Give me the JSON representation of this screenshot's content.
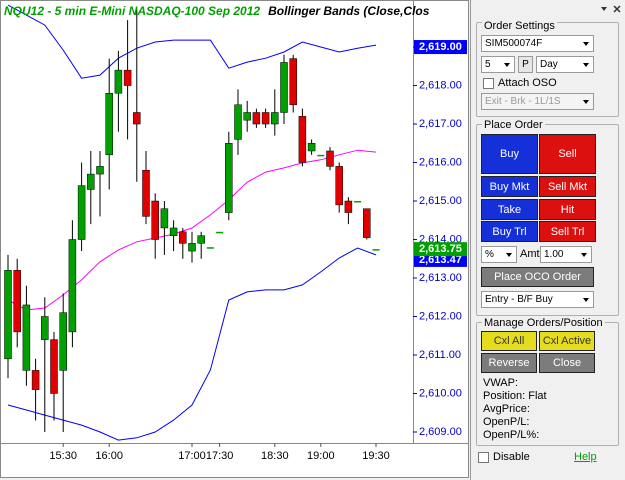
{
  "chart_data": {
    "type": "candlestick",
    "title": "NQU12 - 5 min  E-Mini NASDAQ-100 Sep 2012",
    "indicator": "Bollinger Bands (Close,Clos",
    "categories": [
      null,
      null,
      null,
      null,
      null,
      null,
      "15:30",
      null,
      null,
      null,
      null,
      "16:00",
      null,
      null,
      null,
      null,
      null,
      null,
      null,
      null,
      "17:00",
      null,
      null,
      "17:30",
      null,
      null,
      null,
      null,
      null,
      "18:30",
      null,
      null,
      null,
      null,
      "19:00",
      null,
      null,
      null,
      null,
      null,
      "19:30"
    ],
    "open": [
      2610.9,
      2613.2,
      2610.6,
      2610.6,
      2611.4,
      2611.4,
      2610.6,
      2611.6,
      2614.0,
      2615.3,
      2615.7,
      2616.2,
      2617.8,
      2618.4,
      2617.3,
      2615.8,
      2615.0,
      2614.3,
      2614.1,
      2614.2,
      2613.7,
      2613.9,
      2613.8,
      2614.2,
      2614.7,
      2616.6,
      2617.1,
      2617.3,
      2617.3,
      2617.0,
      2617.3,
      2618.7,
      2617.2,
      2616.3,
      2616.2,
      2616.3,
      2615.9,
      2615.0,
      2615.0,
      2614.8,
      2613.75
    ],
    "high": [
      2613.6,
      2613.5,
      2612.8,
      2610.9,
      2612.5,
      2611.6,
      2612.6,
      2614.5,
      2616.0,
      2616.3,
      2616.3,
      2618.7,
      2618.9,
      2619.7,
      2620.0,
      2616.3,
      2615.2,
      2615.0,
      2614.5,
      2614.3,
      2614.2,
      2614.2,
      2613.8,
      2614.2,
      2616.8,
      2617.9,
      2617.6,
      2617.4,
      2617.4,
      2617.9,
      2618.8,
      2618.8,
      2617.4,
      2616.6,
      2616.2,
      2616.4,
      2616.0,
      2615.1,
      2615.0,
      2614.8,
      2613.75
    ],
    "low": [
      2610.4,
      2611.2,
      2610.2,
      2609.3,
      2609.0,
      2609.3,
      2609.0,
      2611.2,
      2613.7,
      2614.4,
      2614.6,
      2615.3,
      2616.8,
      2616.6,
      2615.5,
      2614.4,
      2613.5,
      2613.6,
      2613.7,
      2613.5,
      2613.4,
      2613.5,
      2613.8,
      2614.2,
      2614.5,
      2616.2,
      2616.8,
      2616.9,
      2616.9,
      2616.7,
      2617.0,
      2617.3,
      2615.9,
      2616.2,
      2616.2,
      2615.8,
      2614.7,
      2614.4,
      2615.0,
      2614.0,
      2613.75
    ],
    "close": [
      2613.2,
      2611.6,
      2612.3,
      2610.1,
      2612.0,
      2610.0,
      2612.1,
      2614.0,
      2615.4,
      2615.7,
      2615.9,
      2617.8,
      2618.4,
      2618.0,
      2617.0,
      2614.6,
      2614.0,
      2614.8,
      2614.3,
      2613.9,
      2613.9,
      2614.1,
      2613.8,
      2614.2,
      2616.5,
      2617.5,
      2617.3,
      2617.0,
      2617.0,
      2617.3,
      2618.6,
      2617.5,
      2616.0,
      2616.5,
      2616.2,
      2615.9,
      2614.9,
      2614.7,
      2615.0,
      2614.05,
      2613.75
    ],
    "up_color": "#00a000",
    "down_color": "#e00000",
    "bands": {
      "x": [
        0,
        2,
        4,
        6,
        8,
        10,
        12,
        14,
        16,
        18,
        20,
        22,
        24,
        26,
        28,
        30,
        32,
        34,
        36,
        38,
        40
      ],
      "upper": [
        2620.09,
        2619.83,
        2619.57,
        2618.92,
        2618.19,
        2618.27,
        2618.71,
        2618.97,
        2619.13,
        2619.18,
        2619.18,
        2619.18,
        2618.45,
        2618.61,
        2618.71,
        2618.87,
        2619.13,
        2619.0,
        2618.87,
        2618.97,
        2619.05
      ],
      "middle": [
        2612.43,
        2612.17,
        2612.22,
        2612.56,
        2612.95,
        2613.42,
        2613.73,
        2613.94,
        2614.04,
        2614.14,
        2614.3,
        2614.64,
        2615.03,
        2615.49,
        2615.75,
        2615.86,
        2615.99,
        2616.07,
        2616.2,
        2616.32,
        2616.27
      ],
      "lower": [
        2609.7,
        2609.57,
        2609.44,
        2609.31,
        2609.18,
        2609.0,
        2608.79,
        2608.85,
        2609.0,
        2609.31,
        2609.7,
        2610.61,
        2612.43,
        2612.64,
        2612.69,
        2612.69,
        2612.82,
        2613.16,
        2613.52,
        2613.78,
        2613.6
      ],
      "band_color": "#0000ff",
      "middle_color": "#ff00ff"
    },
    "ylim": [
      2608.74,
      2620.17
    ],
    "yticks": [
      {
        "value": 2609,
        "label": "2,609.00"
      },
      {
        "value": 2610,
        "label": "2,610.00"
      },
      {
        "value": 2611,
        "label": "2,611.00"
      },
      {
        "value": 2612,
        "label": "2,612.00"
      },
      {
        "value": 2613,
        "label": "2,613.00"
      },
      {
        "value": 2614,
        "label": "2,614.00"
      },
      {
        "value": 2615,
        "label": "2,615.00"
      },
      {
        "value": 2616,
        "label": "2,616.00"
      },
      {
        "value": 2617,
        "label": "2,617.00"
      },
      {
        "value": 2618,
        "label": "2,618.00"
      },
      {
        "value": 2619,
        "label": "2,619.00"
      }
    ],
    "markers": [
      {
        "value": 2619.0,
        "label": "2,619.00",
        "color": "#0000ff"
      },
      {
        "value": 2613.47,
        "label": "2,613.47",
        "color": "#0000ff"
      },
      {
        "value": 2613.75,
        "label": "2,613.75",
        "color": "#00a000"
      }
    ]
  },
  "panel": {
    "order_settings": {
      "title": "Order Settings",
      "account": "SIM500074F",
      "quantity": "5",
      "quantity_button": "P",
      "tif": "Day",
      "attach_oso": "Attach OSO",
      "oso_strategy": "Exit - Brk - 1L/1S"
    },
    "place_order": {
      "title": "Place Order",
      "buttons": [
        "Buy",
        "Sell",
        "Buy Mkt",
        "Sell Mkt",
        "Take",
        "Hit",
        "Buy Trl",
        "Sell Trl"
      ],
      "offset_type": "%",
      "amount_label": "Amt",
      "amount": "1.00",
      "oco_button": "Place OCO Order",
      "entry_strategy": "Entry - B/F Buy"
    },
    "manage": {
      "title": "Manage Orders/Position",
      "buttons": [
        "Cxl All",
        "Cxl Active",
        "Reverse",
        "Close"
      ]
    },
    "status": [
      "VWAP:",
      "Position: Flat",
      "AvgPrice:",
      "OpenP/L:",
      "OpenP/L%:"
    ],
    "disable": "Disable",
    "help": "Help"
  }
}
